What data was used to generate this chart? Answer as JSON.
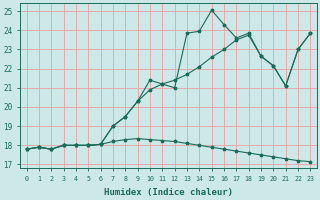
{
  "xlabel": "Humidex (Indice chaleur)",
  "bg_color": "#cce8e8",
  "grid_color": "#e8aaaa",
  "line_color": "#1a6b5a",
  "xlim": [
    -0.5,
    23.5
  ],
  "ylim": [
    16.8,
    25.4
  ],
  "xticks": [
    0,
    1,
    2,
    3,
    4,
    5,
    6,
    7,
    8,
    9,
    10,
    11,
    12,
    13,
    14,
    15,
    16,
    17,
    18,
    19,
    20,
    21,
    22,
    23
  ],
  "yticks": [
    17,
    18,
    19,
    20,
    21,
    22,
    23,
    24,
    25
  ],
  "line1_x": [
    0,
    1,
    2,
    3,
    4,
    5,
    6,
    7,
    8,
    9,
    10,
    11,
    12,
    13,
    14,
    15,
    16,
    17,
    18,
    19,
    20,
    21,
    22,
    23
  ],
  "line1_y": [
    17.8,
    17.9,
    17.8,
    18.0,
    18.0,
    18.0,
    18.05,
    18.2,
    18.3,
    18.35,
    18.3,
    18.25,
    18.2,
    18.1,
    18.0,
    17.9,
    17.8,
    17.7,
    17.6,
    17.5,
    17.4,
    17.3,
    17.2,
    17.15
  ],
  "line2_x": [
    0,
    1,
    2,
    3,
    4,
    5,
    6,
    7,
    8,
    9,
    10,
    11,
    12,
    13,
    14,
    15,
    16,
    17,
    18,
    19,
    20,
    21,
    22,
    23
  ],
  "line2_y": [
    17.8,
    17.9,
    17.8,
    18.0,
    18.0,
    18.0,
    18.05,
    19.0,
    19.5,
    20.3,
    20.9,
    21.2,
    21.4,
    21.7,
    22.1,
    22.6,
    23.0,
    23.5,
    23.75,
    22.65,
    22.15,
    21.1,
    23.0,
    23.85
  ],
  "line3_x": [
    0,
    1,
    2,
    3,
    4,
    5,
    6,
    7,
    8,
    9,
    10,
    11,
    12,
    13,
    14,
    15,
    16,
    17,
    18,
    19,
    20,
    21,
    22,
    23
  ],
  "line3_y": [
    17.8,
    17.9,
    17.8,
    18.0,
    18.0,
    18.0,
    18.05,
    19.0,
    19.5,
    20.3,
    21.4,
    21.2,
    21.0,
    23.85,
    23.95,
    25.05,
    24.3,
    23.6,
    23.85,
    22.65,
    22.15,
    21.1,
    23.0,
    23.85
  ]
}
